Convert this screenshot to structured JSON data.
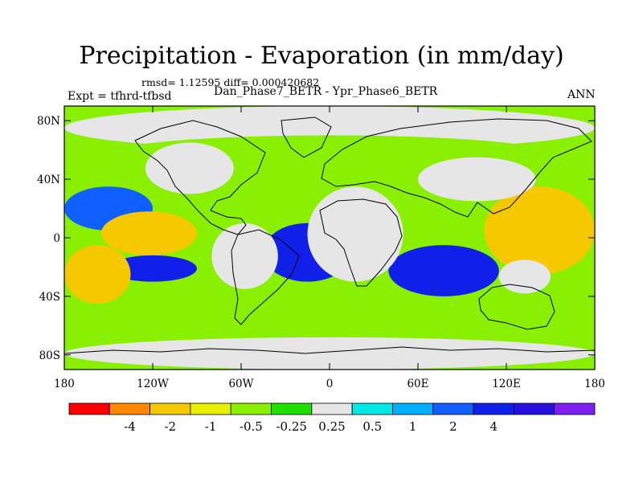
{
  "figure": {
    "title": "Precipitation - Evaporation (in mm/day)",
    "stats": "rmsd= 1.12595 diff= 0.000420682",
    "experiment": "Expt = tfhrd-tfbsd",
    "subtitle": "Dan_Phase7_BETR - Ypr_Phase6_BETR",
    "season": "ANN"
  },
  "map": {
    "projection": "cylindrical-equidistant",
    "lon_range": [
      -180,
      180
    ],
    "lat_range": [
      -90,
      90
    ],
    "lat_ticks": [
      {
        "value": 80,
        "label": "80N"
      },
      {
        "value": 40,
        "label": "40N"
      },
      {
        "value": 0,
        "label": "0"
      },
      {
        "value": -40,
        "label": "40S"
      },
      {
        "value": -80,
        "label": "80S"
      }
    ],
    "lon_ticks": [
      {
        "value": -180,
        "label": "180"
      },
      {
        "value": -120,
        "label": "120W"
      },
      {
        "value": -60,
        "label": "60W"
      },
      {
        "value": 0,
        "label": "0"
      },
      {
        "value": 60,
        "label": "60E"
      },
      {
        "value": 120,
        "label": "120E"
      },
      {
        "value": 180,
        "label": "180"
      }
    ],
    "regions": [
      {
        "name": "arctic-gray",
        "level": 6,
        "lon": [
          -180,
          180
        ],
        "lat": [
          60,
          90
        ]
      },
      {
        "name": "antarctic-gray",
        "level": 6,
        "lon": [
          -180,
          180
        ],
        "lat": [
          -90,
          -68
        ]
      },
      {
        "name": "n-atl-green",
        "level": 4,
        "lon": [
          -160,
          160
        ],
        "lat": [
          40,
          70
        ]
      },
      {
        "name": "n-pac-blue",
        "level": 9,
        "lon": [
          -180,
          -120
        ],
        "lat": [
          5,
          35
        ]
      },
      {
        "name": "e-pac-orange",
        "level": 1,
        "lon": [
          -150,
          -95
        ],
        "lat": [
          -5,
          10
        ]
      },
      {
        "name": "e-pac-yellow",
        "level": 2,
        "lon": [
          -155,
          -90
        ],
        "lat": [
          -12,
          18
        ]
      },
      {
        "name": "s-pac-blue",
        "level": 10,
        "lon": [
          -150,
          -90
        ],
        "lat": [
          -30,
          -12
        ]
      },
      {
        "name": "atl-itcz-blue",
        "level": 10,
        "lon": [
          -45,
          15
        ],
        "lat": [
          -30,
          10
        ]
      },
      {
        "name": "indian-blue",
        "level": 10,
        "lon": [
          40,
          115
        ],
        "lat": [
          -40,
          -5
        ]
      },
      {
        "name": "w-pac-orange",
        "level": 1,
        "lon": [
          125,
          175
        ],
        "lat": [
          -15,
          10
        ]
      },
      {
        "name": "w-pac-yellow",
        "level": 2,
        "lon": [
          105,
          180
        ],
        "lat": [
          -25,
          35
        ]
      },
      {
        "name": "s-pac-yellow",
        "level": 2,
        "lon": [
          -180,
          -135
        ],
        "lat": [
          -45,
          -5
        ]
      },
      {
        "name": "africa-gray",
        "level": 6,
        "lon": [
          -15,
          50
        ],
        "lat": [
          -30,
          35
        ]
      },
      {
        "name": "asia-gray",
        "level": 6,
        "lon": [
          60,
          140
        ],
        "lat": [
          25,
          55
        ]
      },
      {
        "name": "n-america-gray",
        "level": 6,
        "lon": [
          -125,
          -65
        ],
        "lat": [
          30,
          65
        ]
      },
      {
        "name": "s-america-gray",
        "level": 6,
        "lon": [
          -80,
          -35
        ],
        "lat": [
          -35,
          10
        ]
      },
      {
        "name": "australia-gray",
        "level": 6,
        "lon": [
          115,
          150
        ],
        "lat": [
          -38,
          -15
        ]
      },
      {
        "name": "s-ocean-green",
        "level": 4,
        "lon": [
          -180,
          180
        ],
        "lat": [
          -65,
          -45
        ]
      }
    ]
  },
  "colorbar": {
    "colors": [
      "#ff0000",
      "#ff8800",
      "#f5c800",
      "#e8f000",
      "#88f000",
      "#20e000",
      "#e6e6e6",
      "#00e8e8",
      "#00b0ff",
      "#1060ff",
      "#1020e8",
      "#2a10e0",
      "#8020f0"
    ],
    "labels": [
      "-4",
      "-2",
      "-1",
      "-0.5",
      "-0.25",
      "0.25",
      "0.5",
      "1",
      "2",
      "4"
    ]
  }
}
